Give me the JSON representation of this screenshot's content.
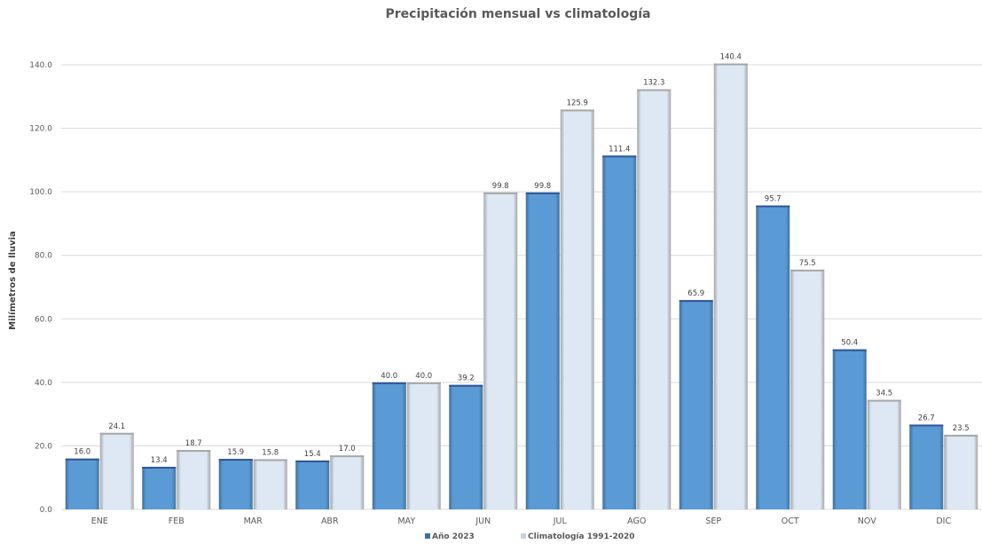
{
  "chart_data": {
    "type": "bar",
    "title": "Precipitación mensual vs climatología",
    "xlabel": "",
    "ylabel": "Milímetros  de lluvia",
    "ylim": [
      0,
      140
    ],
    "yticks": [
      "0.0",
      "20.0",
      "40.0",
      "60.0",
      "80.0",
      "100.0",
      "120.0",
      "140.0"
    ],
    "categories": [
      "ENE",
      "FEB",
      "MAR",
      "ABR",
      "MAY",
      "JUN",
      "JUL",
      "AGO",
      "SEP",
      "OCT",
      "NOV",
      "DIC"
    ],
    "series": [
      {
        "name": "Año 2023",
        "color": "#5b9bd5",
        "values": [
          16.0,
          13.4,
          15.9,
          15.4,
          40.0,
          39.2,
          99.8,
          111.4,
          65.9,
          95.7,
          50.4,
          26.7
        ],
        "labels": [
          "16.0",
          "13.4",
          "15.9",
          "15.4",
          "40.0",
          "39.2",
          "99.8",
          "111.4",
          "65.9",
          "95.7",
          "50.4",
          "26.7"
        ]
      },
      {
        "name": "Climatología 1991-2020",
        "color": "#dbe7f4",
        "values": [
          24.1,
          18.7,
          15.8,
          17.0,
          40.0,
          99.8,
          125.9,
          132.3,
          140.4,
          75.5,
          34.5,
          23.5
        ],
        "labels": [
          "24.1",
          "18.7",
          "15.8",
          "17.0",
          "40.0",
          "99.8",
          "125.9",
          "132.3",
          "140.4",
          "75.5",
          "34.5",
          "23.5"
        ]
      }
    ],
    "grid": true,
    "legend": "bottom"
  }
}
